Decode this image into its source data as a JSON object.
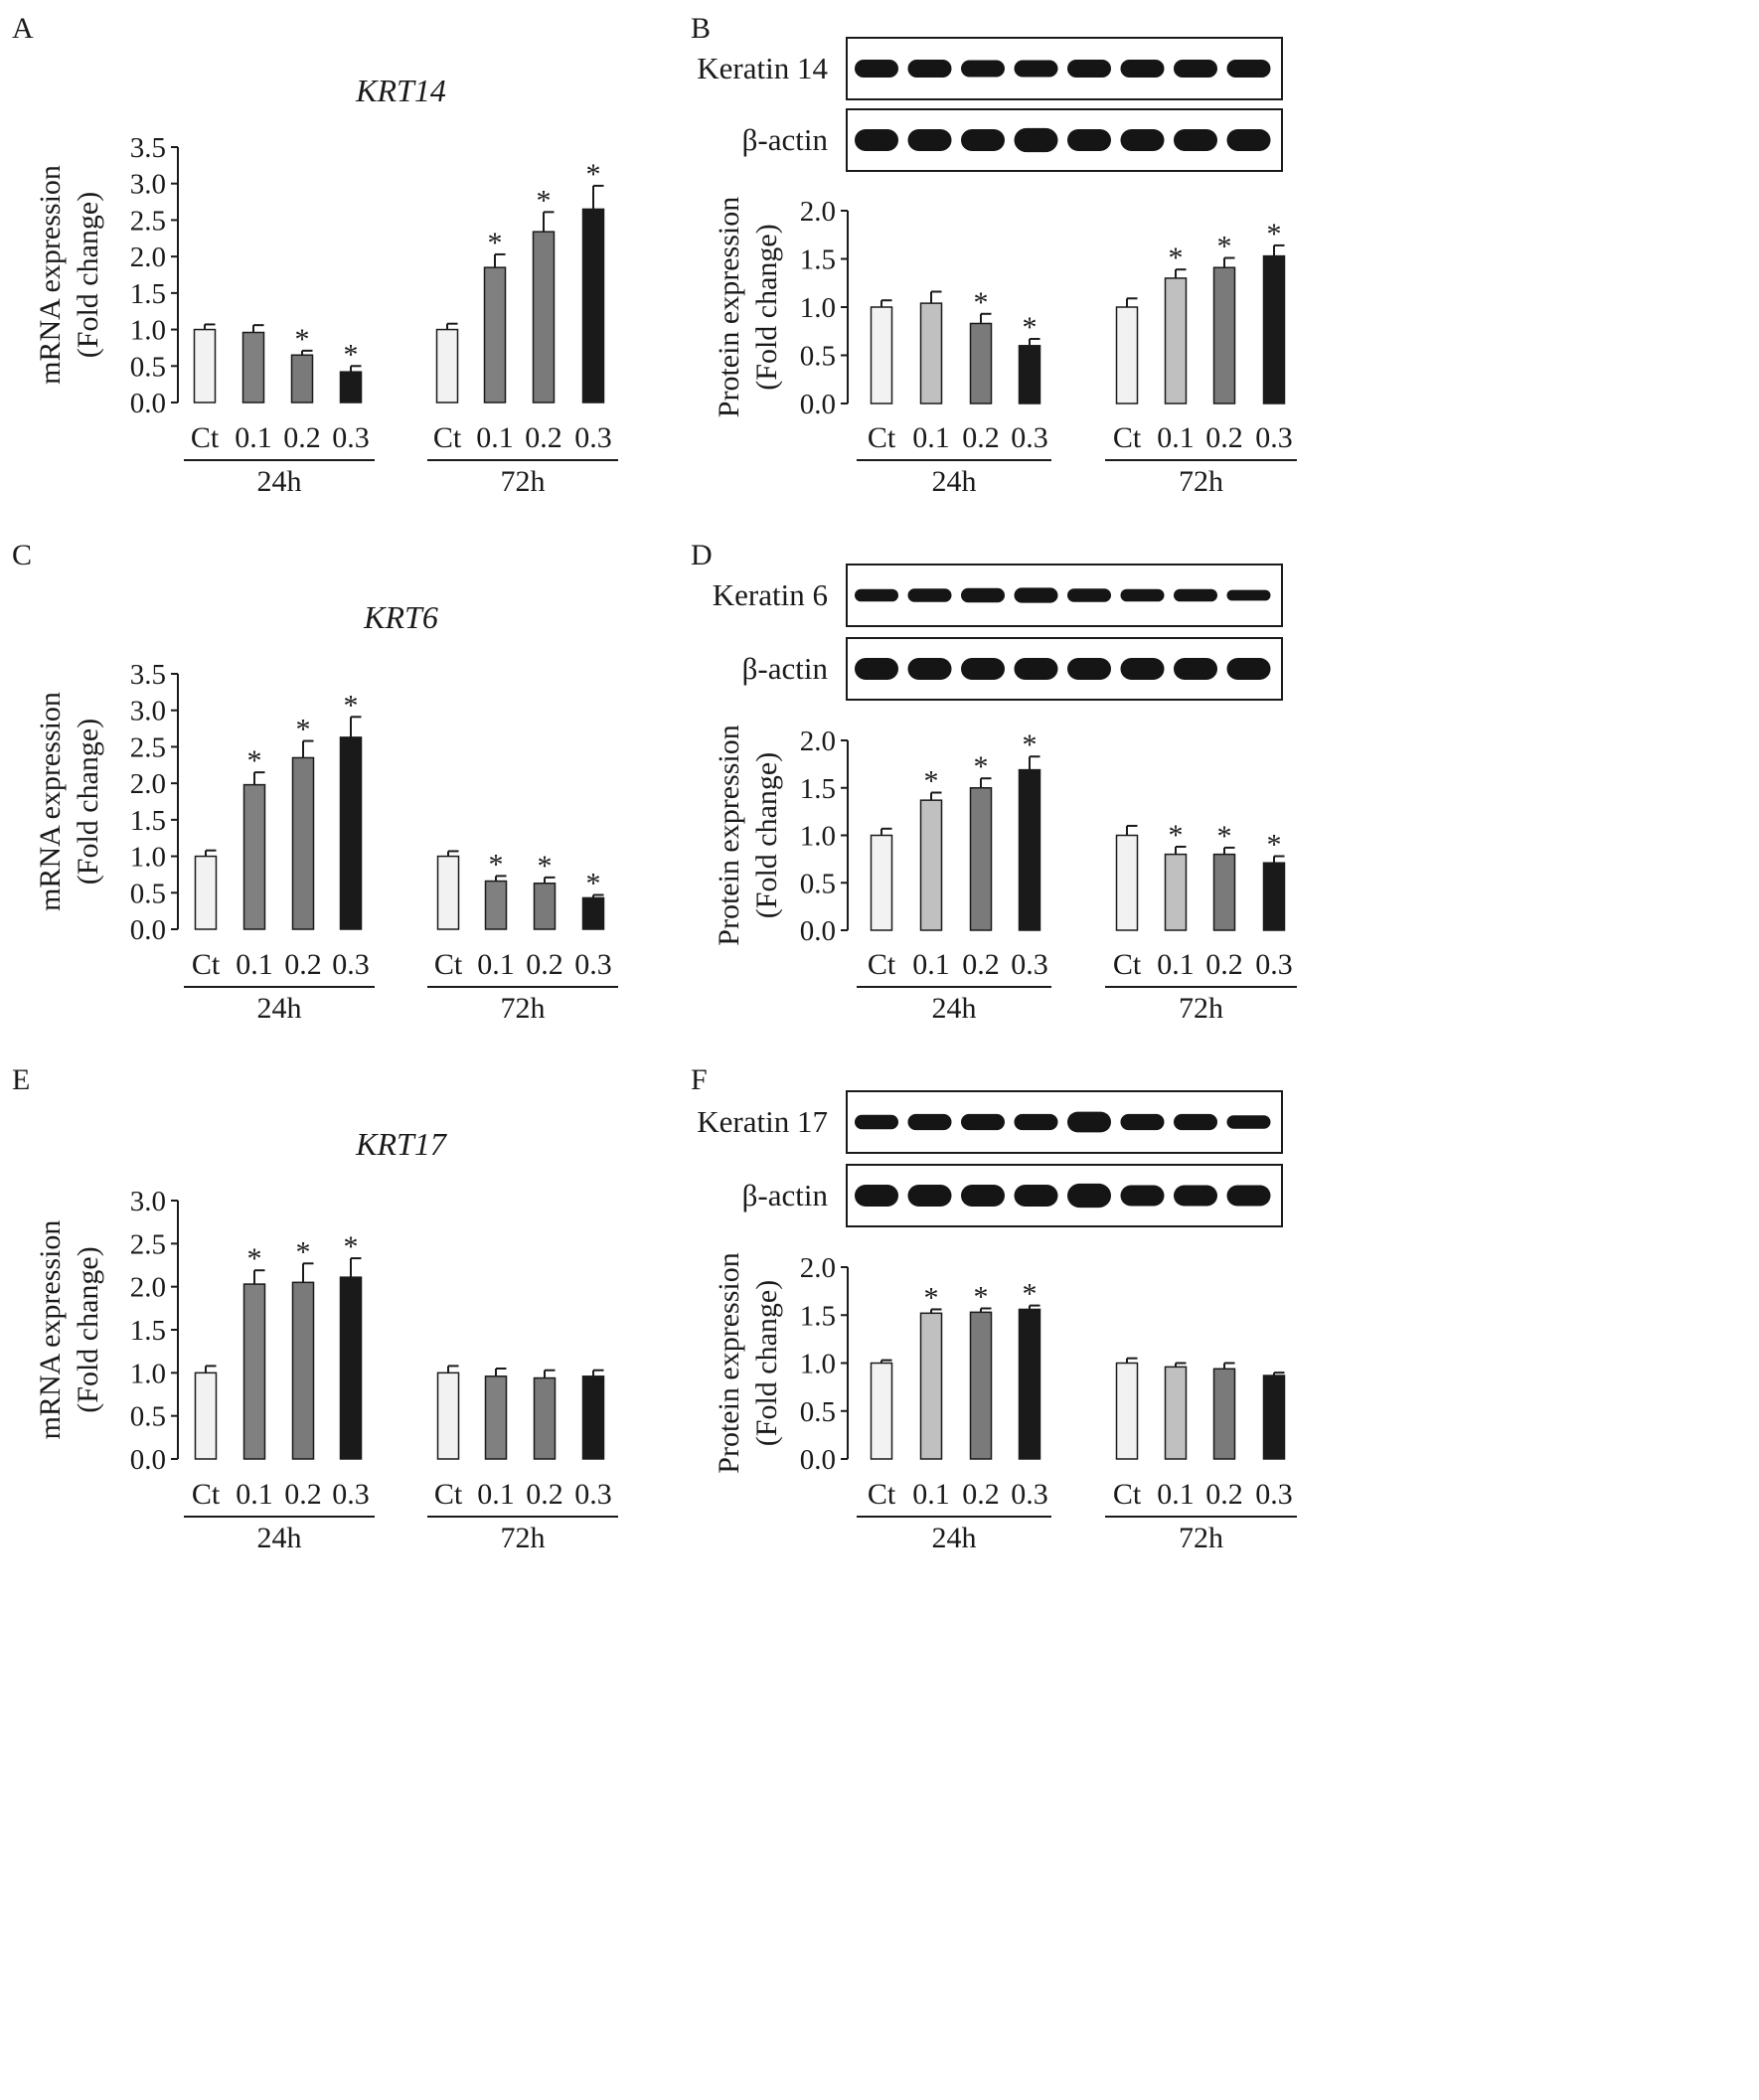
{
  "figure": {
    "group_labels": [
      "24h",
      "72h"
    ],
    "blot_loading_label": "β-actin"
  },
  "colors": {
    "ct": "#f2f2f2",
    "d01_mrna": "#808080",
    "d01_protein": "#c0c0c0",
    "d02": "#7a7a7a",
    "d03": "#1a1a1a",
    "axis": "#1a1a1a",
    "band": "#151515"
  },
  "chart_data": [
    {
      "panel": "A",
      "type": "bar",
      "title": "KRT14",
      "ylabel": [
        "mRNA expression",
        "(Fold change)"
      ],
      "ylim": [
        0,
        3.5
      ],
      "yticks": [
        "0.0",
        "0.5",
        "1.0",
        "1.5",
        "2.0",
        "2.5",
        "3.0",
        "3.5"
      ],
      "categories": [
        "Ct",
        "0.1",
        "0.2",
        "0.3"
      ],
      "groups": [
        "24h",
        "72h"
      ],
      "values": [
        [
          1.0,
          0.96,
          0.65,
          0.42
        ],
        [
          1.0,
          1.85,
          2.34,
          2.65
        ]
      ],
      "errors": [
        [
          0.07,
          0.1,
          0.06,
          0.08
        ],
        [
          0.08,
          0.18,
          0.27,
          0.32
        ]
      ],
      "significant": [
        [
          false,
          false,
          true,
          true
        ],
        [
          false,
          true,
          true,
          true
        ]
      ]
    },
    {
      "panel": "B",
      "type": "bar",
      "title": "",
      "blot": {
        "target": "Keratin 14",
        "loading": "β-actin"
      },
      "ylabel": [
        "Protein expression",
        "(Fold change)"
      ],
      "ylim": [
        0,
        2.0
      ],
      "yticks": [
        "0.0",
        "0.5",
        "1.0",
        "1.5",
        "2.0"
      ],
      "categories": [
        "Ct",
        "0.1",
        "0.2",
        "0.3"
      ],
      "groups": [
        "24h",
        "72h"
      ],
      "values": [
        [
          1.0,
          1.04,
          0.83,
          0.6
        ],
        [
          1.0,
          1.3,
          1.41,
          1.53
        ]
      ],
      "errors": [
        [
          0.07,
          0.12,
          0.1,
          0.07
        ],
        [
          0.09,
          0.09,
          0.1,
          0.11
        ]
      ],
      "significant": [
        [
          false,
          false,
          true,
          true
        ],
        [
          false,
          true,
          true,
          true
        ]
      ]
    },
    {
      "panel": "C",
      "type": "bar",
      "title": "KRT6",
      "ylabel": [
        "mRNA expression",
        "(Fold change)"
      ],
      "ylim": [
        0,
        3.5
      ],
      "yticks": [
        "0.0",
        "0.5",
        "1.0",
        "1.5",
        "2.0",
        "2.5",
        "3.0",
        "3.5"
      ],
      "categories": [
        "Ct",
        "0.1",
        "0.2",
        "0.3"
      ],
      "groups": [
        "24h",
        "72h"
      ],
      "values": [
        [
          1.0,
          1.98,
          2.35,
          2.63
        ],
        [
          1.0,
          0.66,
          0.63,
          0.43
        ]
      ],
      "errors": [
        [
          0.08,
          0.17,
          0.23,
          0.28
        ],
        [
          0.07,
          0.07,
          0.08,
          0.04
        ]
      ],
      "significant": [
        [
          false,
          true,
          true,
          true
        ],
        [
          false,
          true,
          true,
          true
        ]
      ]
    },
    {
      "panel": "D",
      "type": "bar",
      "title": "",
      "blot": {
        "target": "Keratin 6",
        "loading": "β-actin"
      },
      "ylabel": [
        "Protein expression",
        "(Fold change)"
      ],
      "ylim": [
        0,
        2.0
      ],
      "yticks": [
        "0.0",
        "0.5",
        "1.0",
        "1.5",
        "2.0"
      ],
      "categories": [
        "Ct",
        "0.1",
        "0.2",
        "0.3"
      ],
      "groups": [
        "24h",
        "72h"
      ],
      "values": [
        [
          1.0,
          1.37,
          1.5,
          1.69
        ],
        [
          1.0,
          0.8,
          0.8,
          0.71
        ]
      ],
      "errors": [
        [
          0.07,
          0.08,
          0.1,
          0.14
        ],
        [
          0.1,
          0.08,
          0.07,
          0.07
        ]
      ],
      "significant": [
        [
          false,
          true,
          true,
          true
        ],
        [
          false,
          true,
          true,
          true
        ]
      ]
    },
    {
      "panel": "E",
      "type": "bar",
      "title": "KRT17",
      "ylabel": [
        "mRNA expression",
        "(Fold change)"
      ],
      "ylim": [
        0,
        3.0
      ],
      "yticks": [
        "0.0",
        "0.5",
        "1.0",
        "1.5",
        "2.0",
        "2.5",
        "3.0"
      ],
      "categories": [
        "Ct",
        "0.1",
        "0.2",
        "0.3"
      ],
      "groups": [
        "24h",
        "72h"
      ],
      "values": [
        [
          1.0,
          2.03,
          2.05,
          2.11
        ],
        [
          1.0,
          0.96,
          0.94,
          0.96
        ]
      ],
      "errors": [
        [
          0.08,
          0.16,
          0.22,
          0.22
        ],
        [
          0.08,
          0.09,
          0.09,
          0.07
        ]
      ],
      "significant": [
        [
          false,
          true,
          true,
          true
        ],
        [
          false,
          false,
          false,
          false
        ]
      ]
    },
    {
      "panel": "F",
      "type": "bar",
      "title": "",
      "blot": {
        "target": "Keratin 17",
        "loading": "β-actin"
      },
      "ylabel": [
        "Protein expression",
        "(Fold change)"
      ],
      "ylim": [
        0,
        2.0
      ],
      "yticks": [
        "0.0",
        "0.5",
        "1.0",
        "1.5",
        "2.0"
      ],
      "categories": [
        "Ct",
        "0.1",
        "0.2",
        "0.3"
      ],
      "groups": [
        "24h",
        "72h"
      ],
      "values": [
        [
          1.0,
          1.52,
          1.53,
          1.56
        ],
        [
          1.0,
          0.96,
          0.94,
          0.87
        ]
      ],
      "errors": [
        [
          0.03,
          0.04,
          0.04,
          0.04
        ],
        [
          0.05,
          0.04,
          0.06,
          0.03
        ]
      ],
      "significant": [
        [
          false,
          true,
          true,
          true
        ],
        [
          false,
          false,
          false,
          false
        ]
      ]
    }
  ]
}
